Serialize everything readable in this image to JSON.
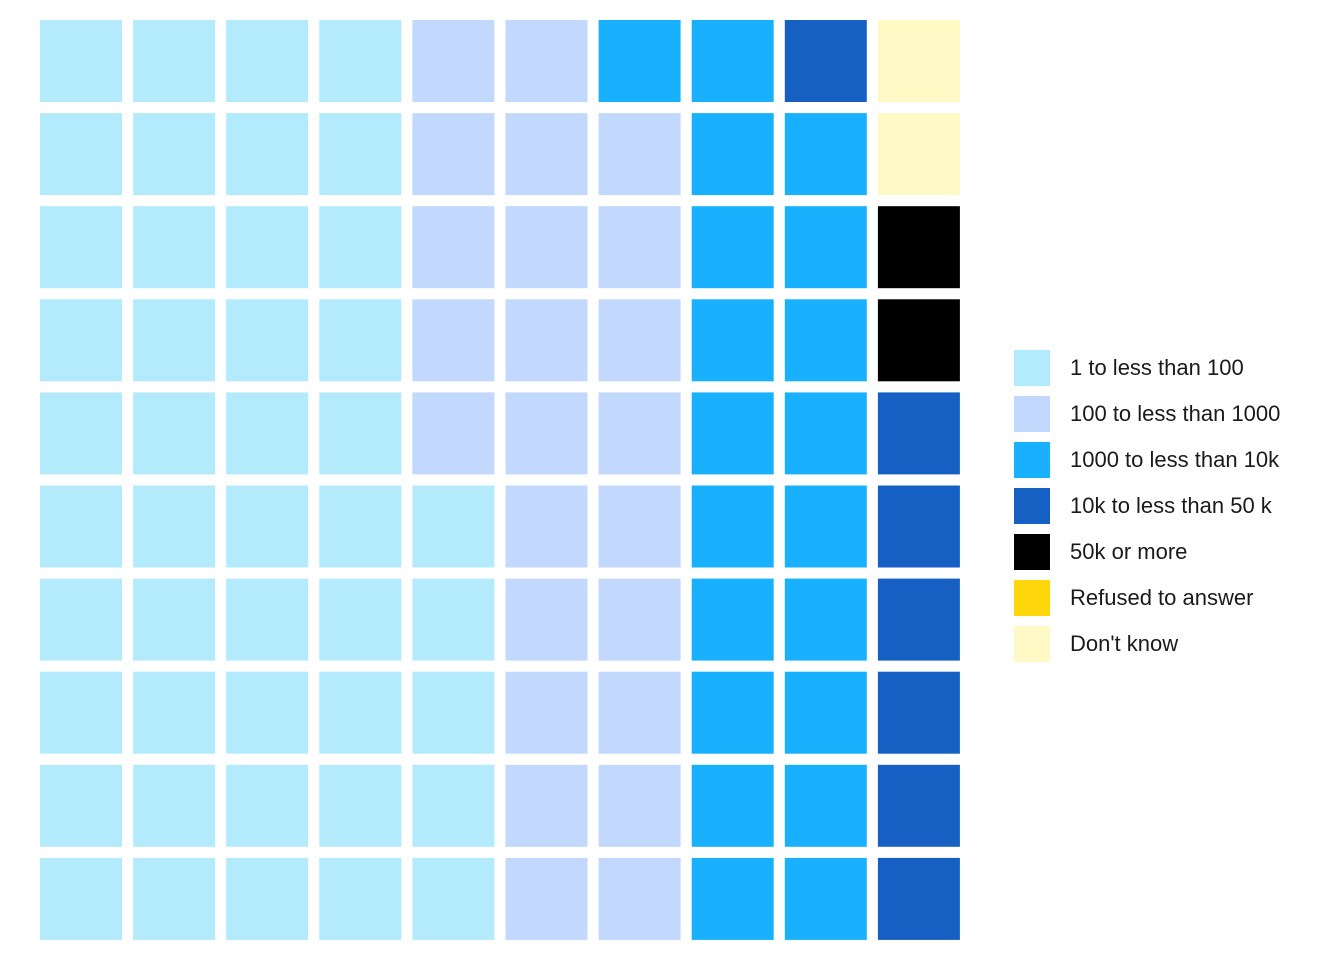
{
  "chart_data": {
    "type": "waffle",
    "title": "",
    "units_per_square": 1,
    "total_squares": 100,
    "grid": {
      "rows": 10,
      "columns": 10,
      "fill_order": "column-major from bottom-left"
    },
    "categories": [
      {
        "label": "1 to less than 100",
        "count": 45,
        "color": "#b3ebfd"
      },
      {
        "label": "100 to less than 1000",
        "count": 24,
        "color": "#c2d9fd"
      },
      {
        "label": "1000 to less than 10k",
        "count": 20,
        "color": "#19b1fd"
      },
      {
        "label": "10k to less than 50 k",
        "count": 7,
        "color": "#1660c3"
      },
      {
        "label": "50k or more",
        "count": 2,
        "color": "#000000"
      },
      {
        "label": "Refused to answer",
        "count": 0,
        "color": "#ffd60a"
      },
      {
        "label": "Don't know",
        "count": 2,
        "color": "#fffac5"
      }
    ],
    "legend": {
      "position": "right"
    }
  }
}
